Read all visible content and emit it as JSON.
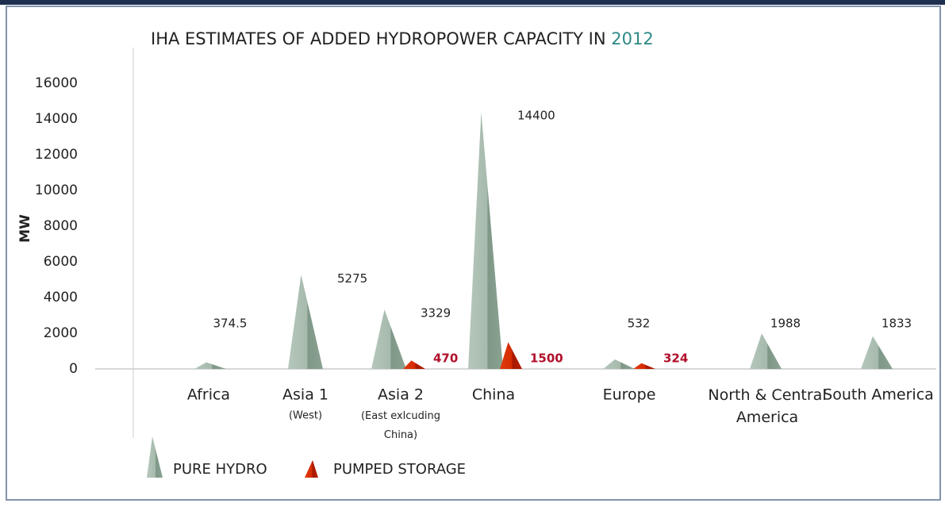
{
  "chart_data": {
    "type": "spike",
    "title": "IHA ESTIMATES OF ADDED HYDROPOWER CAPACITY IN",
    "title_highlight": "2012",
    "ylabel": "MW",
    "categories": [
      "Africa",
      "Asia 1",
      "Asia 2",
      "China",
      "Europe",
      "North & Central America",
      "South America"
    ],
    "category_notes": [
      null,
      "(West)",
      "(East exlcuding China)",
      null,
      null,
      null,
      null
    ],
    "series": [
      {
        "name": "PURE HYDRO",
        "color": "#9fb5a6",
        "values": [
          374.5,
          5275,
          3329,
          14400,
          532,
          1988,
          1833
        ]
      },
      {
        "name": "PUMPED STORAGE",
        "color": "#cc2200",
        "values": [
          null,
          null,
          470,
          1500,
          324,
          null,
          null
        ]
      }
    ],
    "ylim": [
      0,
      16000
    ],
    "yticks": [
      0,
      2000,
      4000,
      6000,
      8000,
      10000,
      12000,
      14000,
      16000
    ],
    "grid": false
  }
}
